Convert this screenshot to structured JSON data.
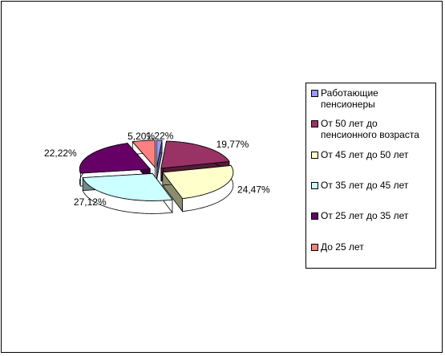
{
  "chart_data": {
    "type": "pie3d",
    "categories": [
      "Работающие пенсионеры",
      "От 50 лет до пенсионного возраста",
      "От 45 лет до 50 лет",
      "От 35 лет до 45 лет",
      "От 25 лет до 35 лет",
      "До 25 лет"
    ],
    "values": [
      1.22,
      19.77,
      24.47,
      27.12,
      22.22,
      5.2
    ],
    "value_labels": [
      "1,22%",
      "19,77%",
      "24,47%",
      "27,12%",
      "22,22%",
      "5,20%"
    ],
    "colors": [
      "#9999FF",
      "#993366",
      "#FFFFCC",
      "#CCFFFF",
      "#660066",
      "#FF8080"
    ],
    "legend": "right"
  }
}
